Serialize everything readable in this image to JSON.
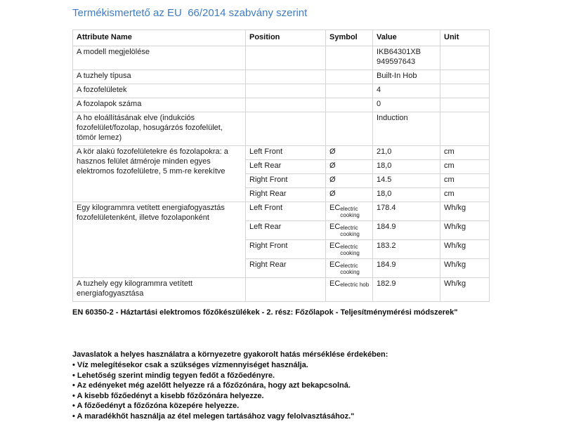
{
  "title": "Termékismertető az EU  66/2014 szabvány szerint",
  "table": {
    "headers": {
      "attribute": "Attribute Name",
      "position": "Position",
      "symbol": "Symbol",
      "value": "Value",
      "unit": "Unit"
    },
    "rows": [
      {
        "attribute": "A modell megjelölése",
        "position": "",
        "symbol": "",
        "value": "IKB64301XB\n949597643",
        "unit": ""
      },
      {
        "attribute": "A tuzhely típusa",
        "position": "",
        "symbol": "",
        "value": "Built-In Hob",
        "unit": ""
      },
      {
        "attribute": "A fozofelületek",
        "position": "",
        "symbol": "",
        "value": "4",
        "unit": ""
      },
      {
        "attribute": "A fozolapok száma",
        "position": "",
        "symbol": "",
        "value": "0",
        "unit": ""
      },
      {
        "attribute": "A ho eloállításának elve (indukciós fozofelület/fozolap, hosugárzós fozofelület, tömör lemez)",
        "position": "",
        "symbol": "",
        "value": "Induction",
        "unit": ""
      },
      {
        "attribute": "A kör alakú fozofelületekre és fozolapokra: a hasznos felület átméroje minden egyes elektromos fozofelületre, 5 mm-re kerekítve",
        "subrows": [
          {
            "position": "Left Front",
            "symbol": "Ø",
            "value": "21,0",
            "unit": "cm"
          },
          {
            "position": "Left Rear",
            "symbol": "Ø",
            "value": "18,0",
            "unit": "cm"
          },
          {
            "position": "Right Front",
            "symbol": "Ø",
            "value": "14.5",
            "unit": "cm"
          },
          {
            "position": "Right Rear",
            "symbol": "Ø",
            "value": "18,0",
            "unit": "cm"
          }
        ]
      },
      {
        "attribute": "Egy kilogrammra vetített energiafogyasztás fozofelületenként, illetve fozolaponként",
        "subrows": [
          {
            "position": "Left Front",
            "symbol_main": "EC",
            "symbol_sub": "electric\ncooking",
            "value": "178.4",
            "unit": "Wh/kg"
          },
          {
            "position": "Left Rear",
            "symbol_main": "EC",
            "symbol_sub": "electric\ncooking",
            "value": "184.9",
            "unit": "Wh/kg"
          },
          {
            "position": "Right Front",
            "symbol_main": "EC",
            "symbol_sub": "electric\ncooking",
            "value": "183.2",
            "unit": "Wh/kg"
          },
          {
            "position": "Right Rear",
            "symbol_main": "EC",
            "symbol_sub": "electric\ncooking",
            "value": "184.9",
            "unit": "Wh/kg"
          }
        ]
      },
      {
        "attribute": "A tuzhely egy kilogrammra vetített energiafogyasztása",
        "position": "",
        "symbol_main": "EC",
        "symbol_sub": "electric hob",
        "value": "182.9",
        "unit": "Wh/kg"
      }
    ]
  },
  "standard_note": "EN 60350-2 - Háztartási elektromos főzőkészülékek - 2. rész: Főzőlapok - Teljesítménymérési módszerek\"",
  "tips": {
    "heading": "Javaslatok a helyes használatra a környezetre gyakorolt hatás mérséklése érdekében:",
    "items": [
      "• Víz melegítésekor csak a szükséges vízmennyiséget használja.",
      "• Lehetőség szerint mindig tegyen fedőt a főzőedényre.",
      "• Az edényeket még azelőtt helyezze rá a főzőzónára, hogy azt bekapcsolná.",
      "• A kisebb főzőedényt a kisebb főzőzónára helyezze.",
      "• A főzőedényt a főzőzóna közepére helyezze.",
      "• A maradékhőt használja az étel melegen tartásához vagy felolvasztásához.\""
    ]
  }
}
